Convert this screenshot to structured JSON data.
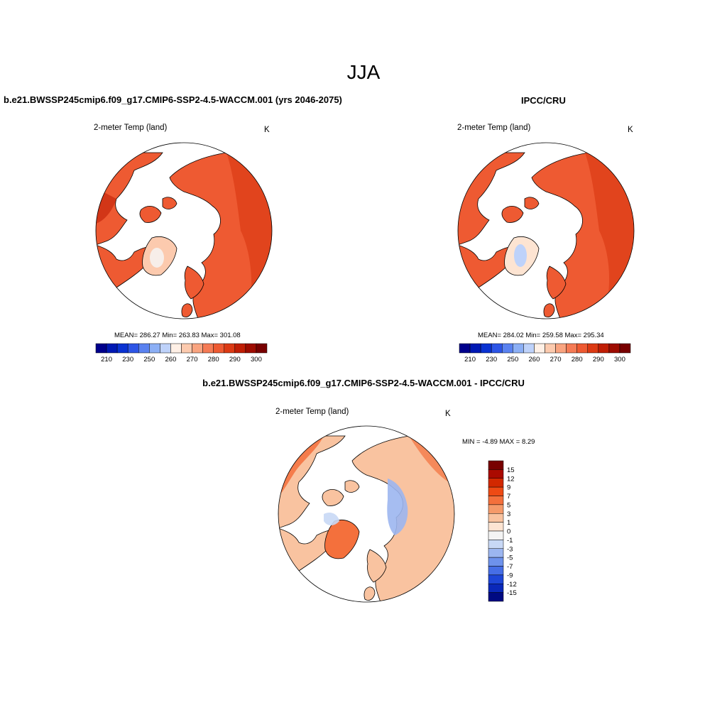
{
  "figure": {
    "title": "JJA",
    "model_panel": {
      "heading": "b.e21.BWSSP245cmip6.f09_g17.CMIP6-SSP2-4.5-WACCM.001 (yrs 2046-2075)",
      "variable": "2-meter Temp (land)",
      "units": "K",
      "stats": "MEAN= 286.27  Min= 263.83  Max= 301.08"
    },
    "obs_panel": {
      "heading": "IPCC/CRU",
      "variable": "2-meter Temp (land)",
      "units": "K",
      "stats": "MEAN= 284.02  Min= 259.58  Max= 295.34"
    },
    "diff_panel": {
      "heading": "b.e21.BWSSP245cmip6.f09_g17.CMIP6-SSP2-4.5-WACCM.001 - IPCC/CRU",
      "variable": "2-meter Temp (land)",
      "units": "K",
      "stats": "MIN =  -4.89 MAX =   8.29"
    }
  },
  "abs_colorbar": {
    "colors": [
      "#00008c",
      "#0019b4",
      "#0a32d2",
      "#2d55e6",
      "#5a82f0",
      "#8caff5",
      "#bed2fa",
      "#fff0e6",
      "#fccaae",
      "#f9a480",
      "#f57b55",
      "#ee5a32",
      "#dc3a14",
      "#c01e05",
      "#9e0c00",
      "#780000"
    ],
    "tick_labels": [
      "210",
      "230",
      "250",
      "260",
      "270",
      "280",
      "290",
      "300"
    ]
  },
  "diff_colorbar": {
    "colors": [
      "#780000",
      "#aa0a00",
      "#d22800",
      "#ee4a14",
      "#f4703c",
      "#f59a6a",
      "#f9c3a0",
      "#fde4d2",
      "#f4f4f4",
      "#c8d8f5",
      "#9cb6f0",
      "#6e92ec",
      "#466ee6",
      "#1e46d7",
      "#0a28b9",
      "#000a82"
    ],
    "tick_labels": [
      "15",
      "12",
      "9",
      "7",
      "5",
      "3",
      "1",
      "0",
      "-1",
      "-3",
      "-5",
      "-7",
      "-9",
      "-12",
      "-15"
    ]
  }
}
